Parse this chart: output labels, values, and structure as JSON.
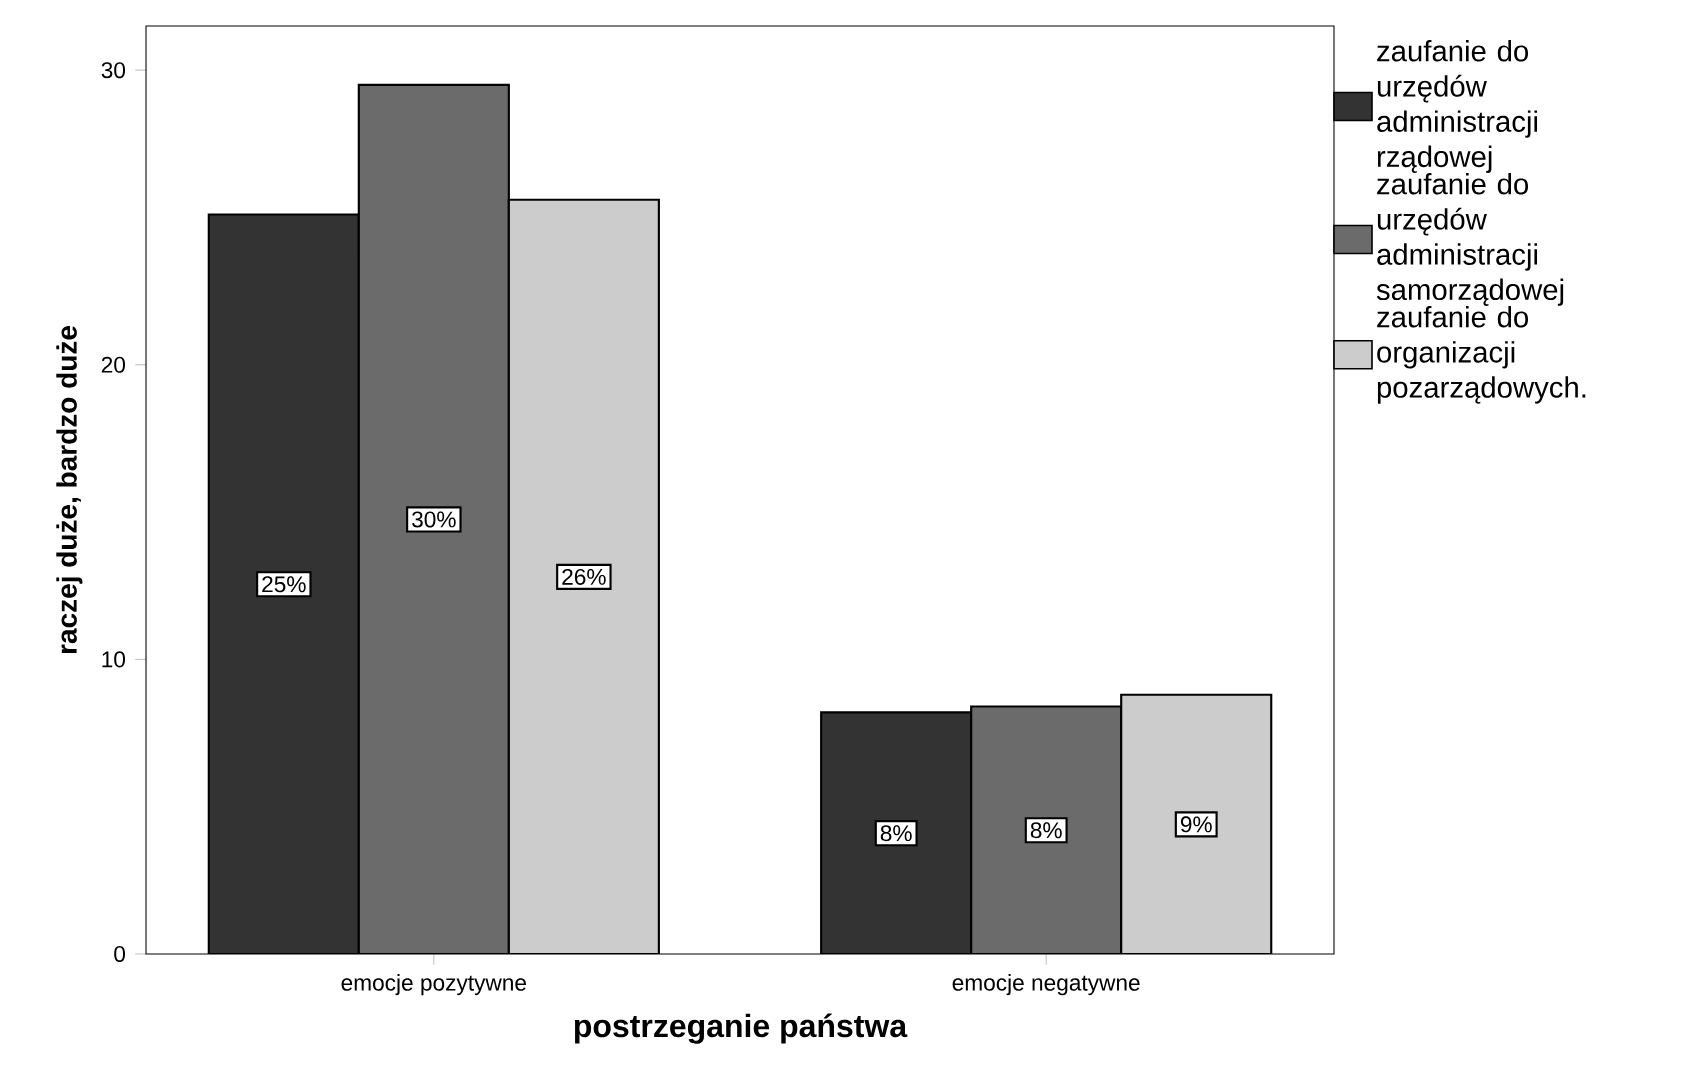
{
  "chart_data": {
    "type": "bar",
    "xlabel": "postrzeganie państwa",
    "ylabel": "raczej duże, bardzo duże",
    "categories": [
      "emocje pozytywne",
      "emocje negatywne"
    ],
    "series": [
      {
        "name": "zaufanie do urzędów administracji rządowej",
        "color": "#333333",
        "values": [
          25.1,
          8.2
        ],
        "value_labels": [
          "25%",
          "8%"
        ]
      },
      {
        "name": "zaufanie do urzędów administracji samorządowej",
        "color": "#6b6b6b",
        "values": [
          29.5,
          8.4
        ],
        "value_labels": [
          "30%",
          "8%"
        ]
      },
      {
        "name": "zaufanie do organizacji pozarządowych.",
        "color": "#cccccc",
        "values": [
          25.6,
          8.8
        ],
        "value_labels": [
          "26%",
          "9%"
        ]
      }
    ],
    "ylim": [
      0,
      31.5
    ],
    "yticks": [
      0,
      10,
      20,
      30
    ],
    "legend": "right",
    "grid": false
  }
}
